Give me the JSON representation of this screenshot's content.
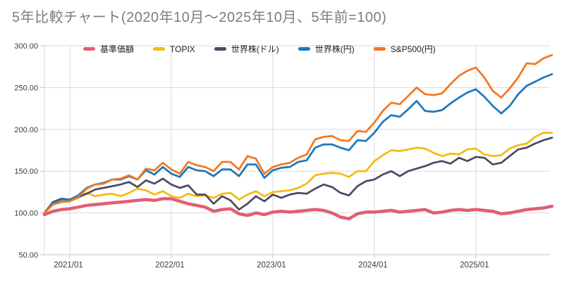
{
  "title": "5年比較チャート(2020年10月〜2025年10月、5年前=100)",
  "colors": {
    "background": "#ffffff",
    "title_text": "#7d7d7d",
    "gridline": "#dadada",
    "axis_line": "#c8c8c8",
    "tick": "#c0c0c0",
    "axis_label": "#3c3c3c"
  },
  "chart_data": {
    "type": "line",
    "title": "5年比較チャート(2020年10月〜2025年10月、5年前=100)",
    "ylim": [
      50,
      300
    ],
    "grid": true,
    "legend_position": "top",
    "baseline_note": "5年前=100",
    "y_ticks": [
      {
        "value": 300,
        "label": "300.00"
      },
      {
        "value": 250,
        "label": "250.00"
      },
      {
        "value": 200,
        "label": "200.00"
      },
      {
        "value": 150,
        "label": "150.00"
      },
      {
        "value": 100,
        "label": "100.00"
      },
      {
        "value": 50,
        "label": "50.00"
      }
    ],
    "x_tick_labels": [
      "2021/01",
      "2022/01",
      "2023/01",
      "2024/01",
      "2025/01"
    ],
    "x": [
      "2020/10",
      "2020/11",
      "2020/12",
      "2021/01",
      "2021/02",
      "2021/03",
      "2021/04",
      "2021/05",
      "2021/06",
      "2021/07",
      "2021/08",
      "2021/09",
      "2021/10",
      "2021/11",
      "2021/12",
      "2022/01",
      "2022/02",
      "2022/03",
      "2022/04",
      "2022/05",
      "2022/06",
      "2022/07",
      "2022/08",
      "2022/09",
      "2022/10",
      "2022/11",
      "2022/12",
      "2023/01",
      "2023/02",
      "2023/03",
      "2023/04",
      "2023/05",
      "2023/06",
      "2023/07",
      "2023/08",
      "2023/09",
      "2023/10",
      "2023/11",
      "2023/12",
      "2024/01",
      "2024/02",
      "2024/03",
      "2024/04",
      "2024/05",
      "2024/06",
      "2024/07",
      "2024/08",
      "2024/09",
      "2024/10",
      "2024/11",
      "2024/12",
      "2025/01",
      "2025/02",
      "2025/03",
      "2025/04",
      "2025/05",
      "2025/06",
      "2025/07",
      "2025/08",
      "2025/09",
      "2025/10"
    ],
    "series": [
      {
        "name": "基準価額",
        "color": "#e35d74",
        "line_width": 4.5,
        "values": [
          98,
          102,
          104,
          105,
          107,
          109,
          110,
          111,
          112,
          113,
          114,
          115,
          116,
          115,
          117,
          117,
          114,
          111,
          109,
          107,
          102,
          104,
          105,
          99,
          97,
          100,
          98,
          101,
          102,
          101,
          102,
          103,
          104,
          103,
          100,
          95,
          93,
          99,
          101,
          101,
          102,
          103,
          101,
          102,
          103,
          104,
          100,
          101,
          103,
          104,
          103,
          104,
          103,
          102,
          99,
          100,
          102,
          104,
          105,
          106,
          108
        ]
      },
      {
        "name": "TOPIX",
        "color": "#f5ba13",
        "line_width": 2.75,
        "values": [
          100,
          111,
          114,
          114,
          118,
          124,
          120,
          122,
          123,
          120,
          124,
          129,
          127,
          122,
          126,
          120,
          118,
          123,
          120,
          121,
          118,
          123,
          124,
          116,
          122,
          126,
          120,
          125,
          126,
          127,
          130,
          135,
          145,
          147,
          148,
          147,
          143,
          150,
          150,
          162,
          169,
          175,
          174,
          176,
          178,
          177,
          172,
          168,
          171,
          170,
          176,
          177,
          170,
          168,
          169,
          177,
          181,
          183,
          191,
          196,
          196
        ]
      },
      {
        "name": "世界株(ドル)",
        "color": "#4d4b63",
        "line_width": 2.75,
        "values": [
          100,
          113,
          117,
          116,
          119,
          123,
          128,
          130,
          132,
          134,
          137,
          131,
          139,
          135,
          141,
          134,
          130,
          133,
          122,
          122,
          111,
          120,
          115,
          104,
          111,
          120,
          114,
          122,
          118,
          122,
          124,
          123,
          129,
          134,
          131,
          124,
          121,
          132,
          138,
          140,
          146,
          150,
          144,
          150,
          153,
          156,
          160,
          162,
          159,
          166,
          162,
          167,
          166,
          158,
          160,
          168,
          176,
          178,
          183,
          187,
          190
        ]
      },
      {
        "name": "世界株(円)",
        "color": "#1e78bd",
        "line_width": 2.75,
        "values": [
          100,
          112,
          116,
          116,
          121,
          130,
          134,
          136,
          140,
          140,
          144,
          140,
          151,
          146,
          155,
          147,
          143,
          155,
          151,
          150,
          144,
          152,
          152,
          144,
          158,
          158,
          142,
          151,
          154,
          155,
          161,
          163,
          178,
          182,
          182,
          178,
          175,
          187,
          186,
          196,
          209,
          217,
          215,
          224,
          234,
          222,
          221,
          223,
          231,
          238,
          244,
          248,
          239,
          228,
          219,
          228,
          242,
          252,
          257,
          262,
          266
        ]
      },
      {
        "name": "S&P500(円)",
        "color": "#f47721",
        "line_width": 2.75,
        "values": [
          100,
          110,
          113,
          114,
          119,
          129,
          134,
          135,
          140,
          141,
          145,
          140,
          153,
          151,
          160,
          152,
          147,
          161,
          157,
          155,
          150,
          161,
          161,
          152,
          168,
          165,
          147,
          155,
          158,
          160,
          166,
          170,
          188,
          191,
          192,
          187,
          186,
          198,
          197,
          208,
          222,
          232,
          230,
          240,
          250,
          242,
          241,
          243,
          254,
          264,
          270,
          274,
          262,
          246,
          238,
          249,
          262,
          279,
          278,
          285,
          289
        ]
      }
    ]
  }
}
